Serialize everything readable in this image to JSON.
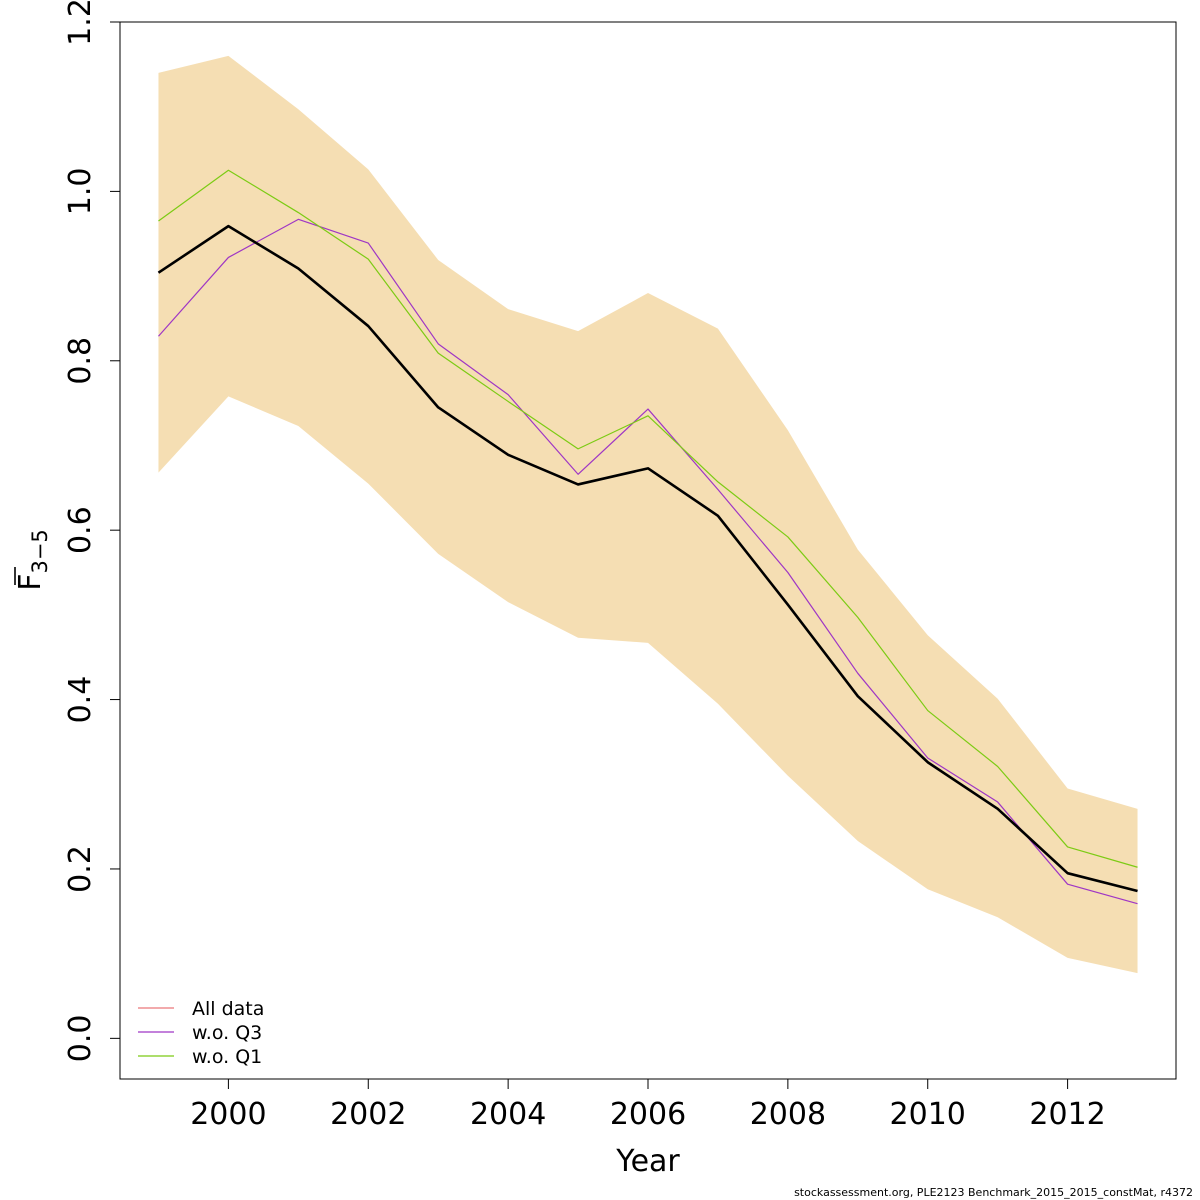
{
  "chart_data": {
    "type": "line",
    "xlabel": "Year",
    "ylabel_main": "F",
    "ylabel_sub": "3−5",
    "xlim": [
      1998.45,
      2013.55
    ],
    "ylim": [
      -0.048,
      1.2
    ],
    "x_ticks": [
      2000,
      2002,
      2004,
      2006,
      2008,
      2010,
      2012
    ],
    "x_tick_labels": [
      "2000",
      "2002",
      "2004",
      "2006",
      "2008",
      "2010",
      "2012"
    ],
    "y_ticks": [
      0.0,
      0.2,
      0.4,
      0.6,
      0.8,
      1.0,
      1.2
    ],
    "y_tick_labels": [
      "0.0",
      "0.2",
      "0.4",
      "0.6",
      "0.8",
      "1.0",
      "1.2"
    ],
    "grid": false,
    "legend_position": "bottom-left",
    "x": [
      1999,
      2000,
      2001,
      2002,
      2003,
      2004,
      2005,
      2006,
      2007,
      2008,
      2009,
      2010,
      2011,
      2012,
      2013
    ],
    "band": {
      "color": "#F5DEB3",
      "lower": [
        0.668,
        0.758,
        0.723,
        0.655,
        0.572,
        0.515,
        0.473,
        0.467,
        0.395,
        0.31,
        0.233,
        0.176,
        0.143,
        0.095,
        0.077
      ],
      "upper": [
        1.14,
        1.16,
        1.097,
        1.026,
        0.919,
        0.861,
        0.835,
        0.88,
        0.838,
        0.718,
        0.577,
        0.476,
        0.401,
        0.295,
        0.271
      ]
    },
    "series": [
      {
        "key": "main",
        "color": "#000000",
        "width": 2.6,
        "values": [
          0.904,
          0.959,
          0.909,
          0.841,
          0.745,
          0.689,
          0.654,
          0.673,
          0.617,
          0.512,
          0.404,
          0.326,
          0.271,
          0.195,
          0.174
        ]
      },
      {
        "key": "all",
        "name": "All data",
        "color": "#E9787A",
        "width": 1.2,
        "values": [
          0.904,
          0.959,
          0.909,
          0.841,
          0.745,
          0.689,
          0.654,
          0.673,
          0.617,
          0.512,
          0.404,
          0.326,
          0.271,
          0.195,
          0.174
        ]
      },
      {
        "key": "woq3",
        "name": "w.o. Q3",
        "color": "#9F36C5",
        "width": 1.2,
        "values": [
          0.829,
          0.922,
          0.967,
          0.939,
          0.82,
          0.76,
          0.666,
          0.743,
          0.648,
          0.55,
          0.431,
          0.331,
          0.279,
          0.182,
          0.159
        ]
      },
      {
        "key": "woq1",
        "name": "w.o. Q1",
        "color": "#7CCB14",
        "width": 1.2,
        "values": [
          0.965,
          1.025,
          0.975,
          0.92,
          0.809,
          0.752,
          0.696,
          0.735,
          0.657,
          0.592,
          0.497,
          0.387,
          0.321,
          0.226,
          0.202
        ]
      }
    ],
    "legend": [
      {
        "label": "All data",
        "color": "#E9787A"
      },
      {
        "label": "w.o. Q3",
        "color": "#9F36C5"
      },
      {
        "label": "w.o. Q1",
        "color": "#7CCB14"
      }
    ]
  },
  "footer_text": "stockassessment.org, PLE2123   Benchmark_2015_2015_constMat, r4372"
}
